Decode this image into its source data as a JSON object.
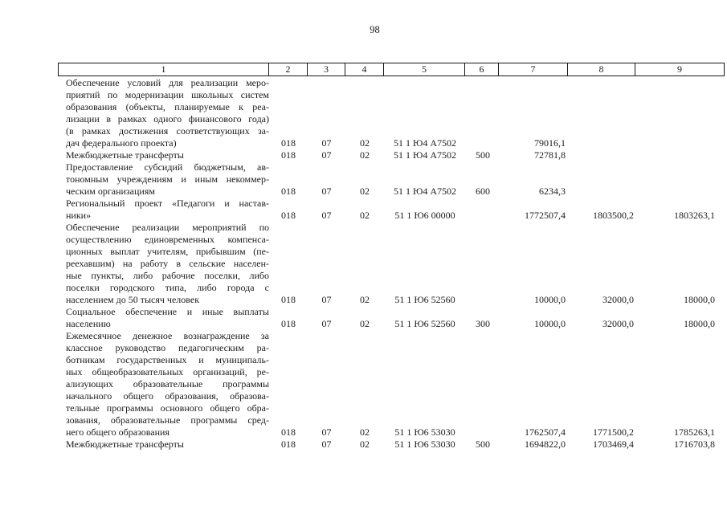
{
  "page": {
    "number": "98"
  },
  "table": {
    "header": [
      "1",
      "2",
      "3",
      "4",
      "5",
      "6",
      "7",
      "8",
      "9"
    ],
    "rows": [
      {
        "lines": [
          "Обеспечение условий для реализации меро-",
          "приятий по модернизации школьных систем",
          "образования (объекты, планируемые к реа-",
          "лизации в рамках одного финансового года)",
          "(в рамках достижения соответствующих за-",
          "дач федерального проекта)"
        ],
        "values": [
          "018",
          "07",
          "02",
          "51 1 Ю4 А7502",
          "",
          "79016,1",
          "",
          ""
        ]
      },
      {
        "lines": [
          "Межбюджетные трансферты"
        ],
        "values": [
          "018",
          "07",
          "02",
          "51 1 Ю4 А7502",
          "500",
          "72781,8",
          "",
          ""
        ]
      },
      {
        "lines": [
          "Предоставление субсидий бюджетным, ав-",
          "тономным учреждениям и иным некоммер-",
          "ческим организациям"
        ],
        "values": [
          "018",
          "07",
          "02",
          "51 1 Ю4 А7502",
          "600",
          "6234,3",
          "",
          ""
        ]
      },
      {
        "lines": [
          "Региональный проект «Педагоги и настав-",
          "ники»"
        ],
        "values": [
          "018",
          "07",
          "02",
          "51 1 Ю6 00000",
          "",
          "1772507,4",
          "1803500,2",
          "1803263,1"
        ]
      },
      {
        "lines": [
          "Обеспечение реализации мероприятий по",
          "осуществлению единовременных компенса-",
          "ционных выплат учителям, прибывшим (пе-",
          "реехавшим) на работу в сельские населен-",
          "ные пункты, либо рабочие поселки, либо",
          "поселки городского типа, либо города с",
          "населением до 50 тысяч человек"
        ],
        "values": [
          "018",
          "07",
          "02",
          "51 1 Ю6 52560",
          "",
          "10000,0",
          "32000,0",
          "18000,0"
        ]
      },
      {
        "lines": [
          "Социальное обеспечение и иные выплаты",
          "населению"
        ],
        "values": [
          "018",
          "07",
          "02",
          "51 1 Ю6 52560",
          "300",
          "10000,0",
          "32000,0",
          "18000,0"
        ]
      },
      {
        "lines": [
          "Ежемесячное денежное вознаграждение за",
          "классное руководство педагогическим ра-",
          "ботникам государственных и муниципаль-",
          "ных общеобразовательных организаций, ре-",
          "ализующих образовательные программы",
          "начального общего образования, образова-",
          "тельные программы основного общего обра-",
          "зования, образовательные программы сред-",
          "него общего образования"
        ],
        "values": [
          "018",
          "07",
          "02",
          "51 1 Ю6 53030",
          "",
          "1762507,4",
          "1771500,2",
          "1785263,1"
        ]
      },
      {
        "lines": [
          "Межбюджетные трансферты"
        ],
        "values": [
          "018",
          "07",
          "02",
          "51 1 Ю6 53030",
          "500",
          "1694822,0",
          "1703469,4",
          "1716703,8"
        ]
      }
    ]
  }
}
